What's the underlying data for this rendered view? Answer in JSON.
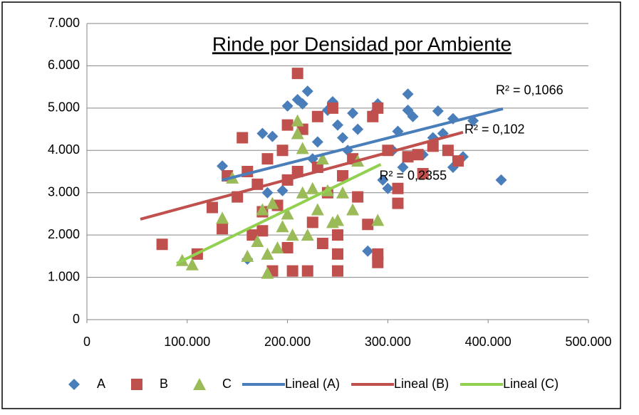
{
  "chart_data": {
    "type": "scatter",
    "title": "Rinde por Densidad por Ambiente",
    "xlim": [
      0,
      500000
    ],
    "xticks": [
      0,
      {
        "value": 100000,
        "label": "100.000"
      },
      {
        "value": 200000,
        "label": "200.000"
      },
      {
        "value": 300000,
        "label": "300.000"
      },
      {
        "value": 400000,
        "label": "400.000"
      },
      {
        "value": 500000,
        "label": "500.000"
      }
    ],
    "ylim": [
      0,
      7000
    ],
    "yticks": [
      0,
      {
        "value": 1000,
        "label": "1.000"
      },
      {
        "value": 2000,
        "label": "2.000"
      },
      {
        "value": 3000,
        "label": "3.000"
      },
      {
        "value": 4000,
        "label": "4.000"
      },
      {
        "value": 5000,
        "label": "5.000"
      },
      {
        "value": 6000,
        "label": "6.000"
      },
      {
        "value": 7000,
        "label": "7.000"
      }
    ],
    "grid": true,
    "legend": "bottom",
    "series": [
      {
        "name": "A",
        "color": "#4a7ebb",
        "marker": "diamond",
        "x": [
          135000,
          160000,
          175000,
          185000,
          195000,
          200000,
          210000,
          215000,
          220000,
          230000,
          240000,
          245000,
          250000,
          255000,
          265000,
          270000,
          280000,
          285000,
          290000,
          295000,
          300000,
          310000,
          315000,
          320000,
          320000,
          325000,
          335000,
          345000,
          350000,
          355000,
          365000,
          365000,
          375000,
          385000,
          413000,
          305000,
          260000,
          225000,
          180000
        ],
        "values": [
          3630,
          1430,
          4400,
          4330,
          3050,
          5050,
          5200,
          5100,
          5400,
          4200,
          4950,
          5150,
          4600,
          4300,
          4880,
          4500,
          1620,
          4850,
          5100,
          3300,
          3100,
          4450,
          3600,
          5330,
          4950,
          4800,
          3900,
          4300,
          4930,
          4400,
          4750,
          3600,
          3850,
          4700,
          3300,
          4000,
          4000,
          3800,
          3000
        ]
      },
      {
        "name": "B",
        "color": "#c0504d",
        "marker": "square",
        "x": [
          75000,
          110000,
          125000,
          135000,
          140000,
          150000,
          155000,
          160000,
          165000,
          170000,
          175000,
          180000,
          185000,
          190000,
          195000,
          200000,
          200000,
          205000,
          210000,
          210000,
          215000,
          220000,
          225000,
          230000,
          235000,
          240000,
          245000,
          250000,
          250000,
          250000,
          255000,
          265000,
          270000,
          280000,
          285000,
          290000,
          290000,
          290000,
          300000,
          310000,
          310000,
          320000,
          330000,
          335000,
          345000,
          360000,
          370000,
          200000,
          230000,
          175000
        ],
        "values": [
          1780,
          1550,
          2650,
          2150,
          3400,
          2900,
          4300,
          3500,
          2000,
          3200,
          2550,
          3800,
          1150,
          2700,
          4000,
          4600,
          1700,
          1150,
          5820,
          3500,
          4500,
          1150,
          2300,
          4800,
          1800,
          3000,
          5000,
          1150,
          1550,
          2000,
          3400,
          3800,
          2900,
          2250,
          4800,
          1550,
          1350,
          5000,
          4000,
          2750,
          3100,
          3850,
          3900,
          3450,
          4100,
          4000,
          3750,
          3300,
          3600,
          2100
        ]
      },
      {
        "name": "C",
        "color": "#9bbb59",
        "marker": "triangle",
        "x": [
          95000,
          105000,
          135000,
          145000,
          160000,
          170000,
          175000,
          180000,
          180000,
          185000,
          190000,
          195000,
          205000,
          210000,
          210000,
          215000,
          220000,
          225000,
          230000,
          235000,
          240000,
          245000,
          250000,
          255000,
          265000,
          270000,
          290000,
          200000,
          215000
        ],
        "values": [
          1400,
          1300,
          2400,
          3350,
          1500,
          1850,
          2600,
          1100,
          1550,
          2750,
          1700,
          2200,
          2000,
          4700,
          4400,
          4050,
          2000,
          3100,
          2600,
          3800,
          3050,
          2300,
          2350,
          3000,
          2600,
          3750,
          2350,
          2500,
          3000
        ]
      }
    ],
    "trendlines": [
      {
        "name": "Lineal (A)",
        "color": "#4a7ebb",
        "x": [
          135000,
          414800
        ],
        "values": [
          3300,
          4983
        ],
        "annotation": "R² = 0,1066"
      },
      {
        "name": "Lineal (B)",
        "color": "#c0504d",
        "x": [
          53300,
          375000
        ],
        "values": [
          2374,
          4428
        ],
        "annotation": "R² = 0,102"
      },
      {
        "name": "Lineal (C)",
        "color": "#92d050",
        "x": [
          89500,
          293000
        ],
        "values": [
          1330,
          3670
        ],
        "annotation": "R² = 0,2355"
      }
    ]
  }
}
